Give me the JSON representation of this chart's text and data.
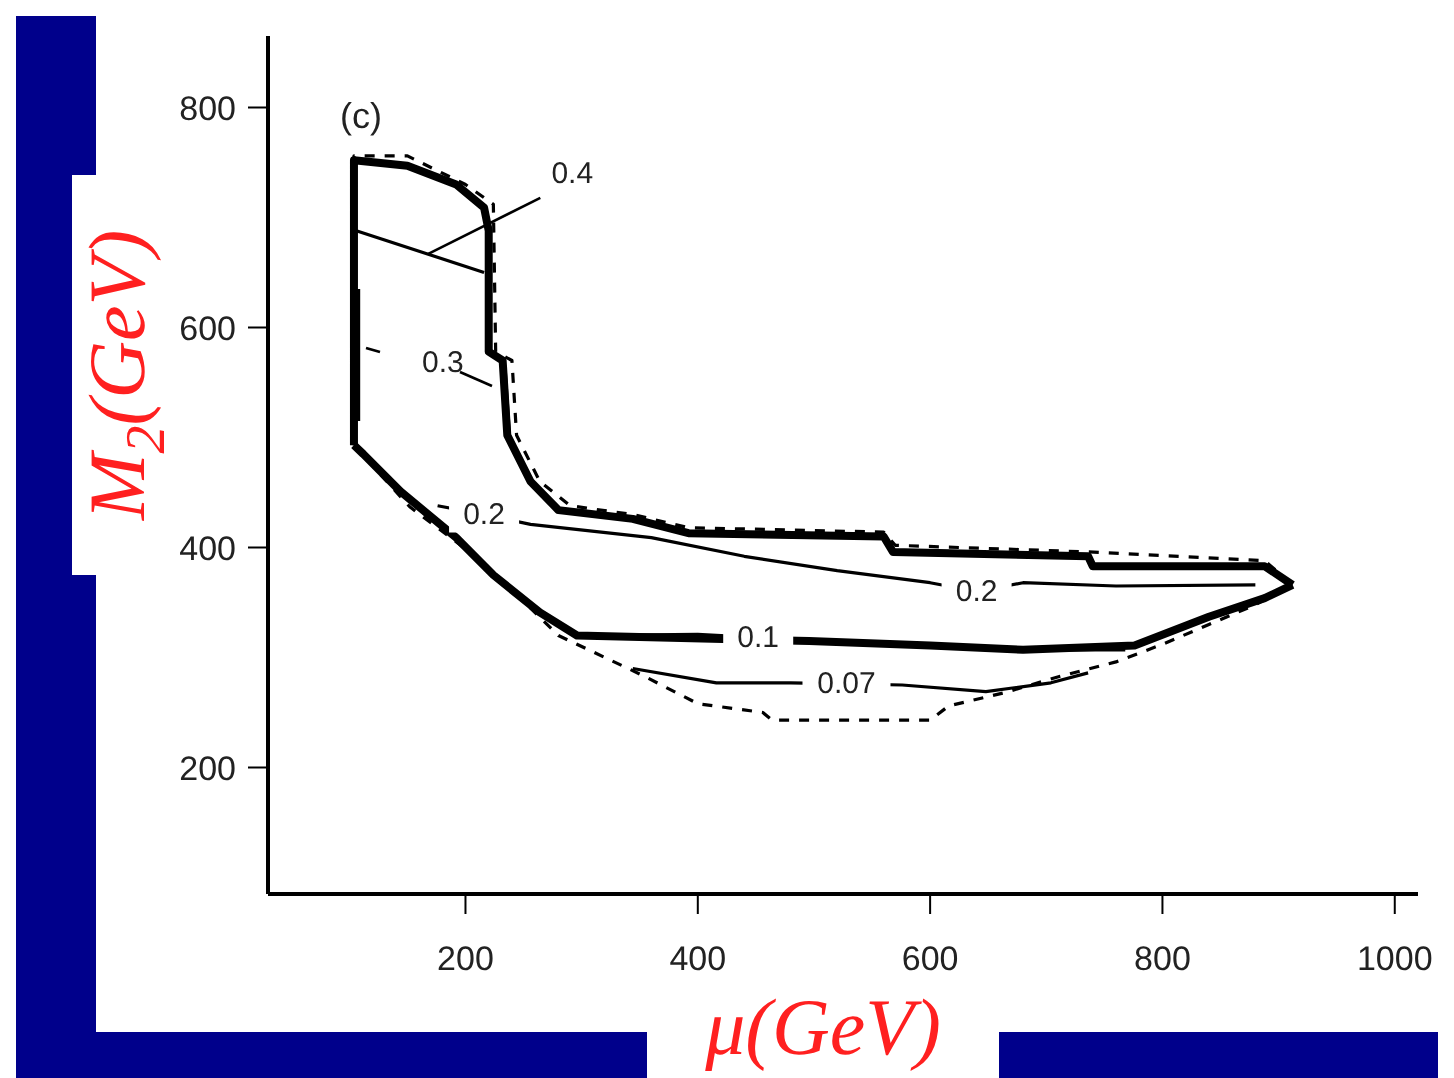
{
  "chart_data": {
    "type": "line",
    "xlabel": "μ(GeV)",
    "ylabel": "M$_{2}$(GeV)",
    "xlim": [
      30,
      1020
    ],
    "ylim": [
      85,
      865
    ],
    "xticks": [
      200,
      400,
      600,
      800,
      1000
    ],
    "yticks": [
      200,
      400,
      600,
      800
    ],
    "grid": false,
    "legend": false,
    "marker": "none",
    "series": [
      {
        "color": "#000000",
        "line_style": "solid",
        "x": [
          104,
          104,
          150,
          192,
          216,
          220,
          220,
          232,
          236,
          256,
          280,
          344,
          392,
          560,
          568,
          736,
          740,
          888,
          912
        ],
        "values": [
          493,
          752,
          747,
          730,
          709,
          688,
          578,
          570,
          502,
          460,
          434,
          426,
          413,
          410,
          396,
          392,
          383,
          383,
          366
        ]
      },
      {
        "color": "#000000",
        "line_style": "solid",
        "x": [
          104,
          112,
          144,
          192,
          224,
          264,
          296,
          496,
          600,
          680,
          776,
          840,
          888,
          912
        ],
        "values": [
          493,
          485,
          451,
          409,
          375,
          341,
          320,
          315,
          311,
          307,
          311,
          337,
          354,
          366
        ]
      },
      {
        "color": "#000000",
        "line_style": "dashed",
        "x": [
          104,
          104,
          150,
          200,
          224,
          226,
          240,
          244,
          264,
          290,
          344,
          392,
          560,
          570,
          736,
          888,
          912
        ],
        "values": [
          493,
          756,
          756,
          730,
          712,
          578,
          570,
          502,
          460,
          438,
          430,
          418,
          414,
          402,
          396,
          388,
          366
        ]
      },
      {
        "color": "#000000",
        "line_style": "dashed",
        "x": [
          104,
          152,
          216,
          280,
          352,
          400,
          456,
          464,
          600,
          616,
          664,
          712,
          760,
          800,
          840,
          880,
          912
        ],
        "values": [
          493,
          437,
          386,
          320,
          284,
          258,
          250,
          243,
          243,
          256,
          268,
          283,
          296,
          312,
          330,
          348,
          366
        ]
      },
      {
        "color": "#000000",
        "line_style": "solid",
        "x": [
          106,
          216
        ],
        "values": [
          688,
          650
        ]
      },
      {
        "color": "#000000",
        "line_style": "solid",
        "x": [
          108,
          108,
          null,
          234,
          238
        ],
        "values": [
          635,
          515,
          null,
          565,
          500
        ]
      },
      {
        "color": "#000000",
        "line_style": "solid",
        "x": [
          176,
          216,
          256,
          360,
          440,
          520,
          600,
          640,
          680,
          760,
          880
        ],
        "values": [
          438,
          430,
          421,
          409,
          392,
          379,
          368,
          360,
          368,
          365,
          366
        ]
      },
      {
        "color": "#000000",
        "line_style": "solid",
        "x": [
          296,
          400,
          452,
          488,
          560,
          680,
          768
        ],
        "values": [
          320,
          321,
          318,
          315,
          313,
          307,
          307
        ]
      },
      {
        "color": "#000000",
        "line_style": "solid",
        "x": [
          344,
          416,
          480,
          528,
          576,
          648,
          704,
          736
        ],
        "values": [
          290,
          277,
          277,
          276,
          275,
          269,
          277,
          286
        ]
      }
    ],
    "annotations": [
      "(c)",
      {
        "text": "0.4",
        "x": 168,
        "y": 667
      },
      "0.3",
      {
        "text": "0.2",
        "x": 216,
        "y": 430
      },
      {
        "text": "0.2",
        "x": 640,
        "y": 360
      },
      {
        "text": "0.1",
        "x": 452,
        "y": 318
      },
      {
        "text": "0.07",
        "x": 528,
        "y": 276
      }
    ]
  }
}
